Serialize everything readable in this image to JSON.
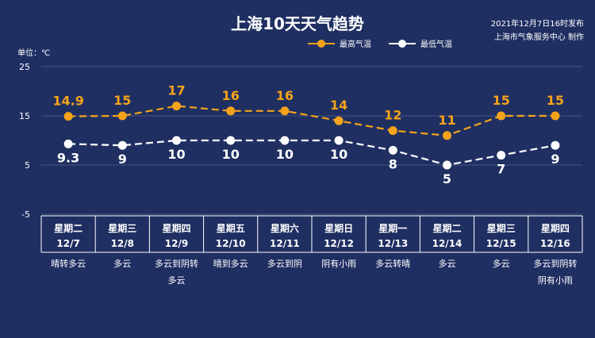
{
  "header": {
    "title": "上海10天天气趋势",
    "publish_line1": "2021年12月7日16时发布",
    "publish_line2": "上海市气象服务中心 制作"
  },
  "colors": {
    "background": "#1f2f62",
    "high": "#f5a31a",
    "low": "#ffffff",
    "grid": "#ffffff"
  },
  "chart_data": {
    "type": "line",
    "unit_label": "单位：℃",
    "ylim": [
      -5,
      25
    ],
    "yticks": [
      -5,
      5,
      15,
      25
    ],
    "legend_position": "top-right",
    "series": [
      {
        "name": "最高气温",
        "values": [
          14.9,
          15,
          17,
          16,
          16,
          14,
          12,
          11,
          15,
          15
        ]
      },
      {
        "name": "最低气温",
        "values": [
          9.3,
          9,
          10,
          10,
          10,
          10,
          8,
          5,
          7,
          9
        ]
      }
    ],
    "days": [
      {
        "weekday": "星期二",
        "date": "12/7",
        "weather": [
          "晴转多云"
        ]
      },
      {
        "weekday": "星期三",
        "date": "12/8",
        "weather": [
          "多云"
        ]
      },
      {
        "weekday": "星期四",
        "date": "12/9",
        "weather": [
          "多云到阴转",
          "多云"
        ]
      },
      {
        "weekday": "星期五",
        "date": "12/10",
        "weather": [
          "晴到多云"
        ]
      },
      {
        "weekday": "星期六",
        "date": "12/11",
        "weather": [
          "多云到阴"
        ]
      },
      {
        "weekday": "星期日",
        "date": "12/12",
        "weather": [
          "阴有小雨"
        ]
      },
      {
        "weekday": "星期一",
        "date": "12/13",
        "weather": [
          "多云转晴"
        ]
      },
      {
        "weekday": "星期二",
        "date": "12/14",
        "weather": [
          "多云"
        ]
      },
      {
        "weekday": "星期三",
        "date": "12/15",
        "weather": [
          "多云"
        ]
      },
      {
        "weekday": "星期四",
        "date": "12/16",
        "weather": [
          "多云到阴转",
          "阴有小雨"
        ]
      }
    ]
  }
}
